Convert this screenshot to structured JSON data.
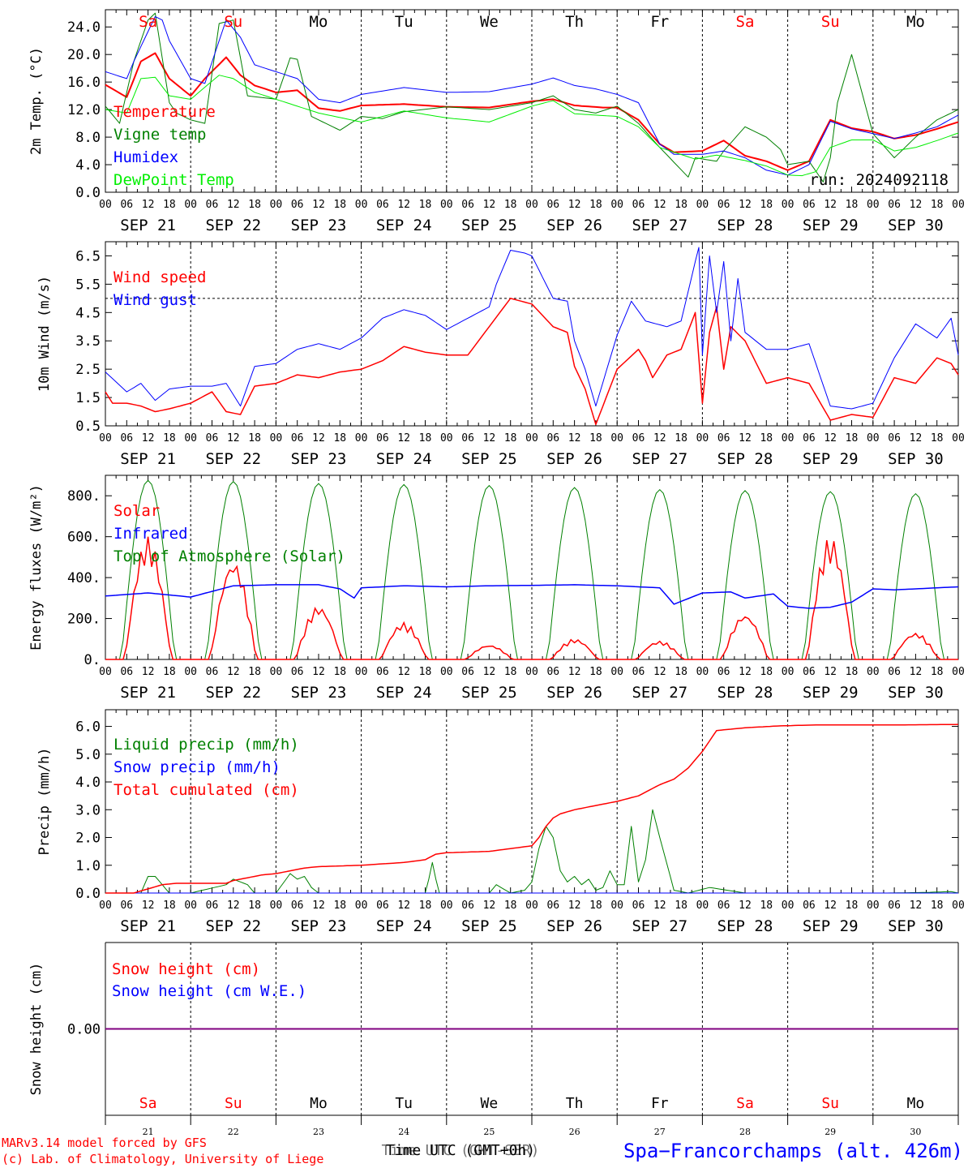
{
  "colors": {
    "red": "#ff0000",
    "green": "#008000",
    "blue": "#0000ff",
    "lime": "#00ee00",
    "purple": "#800080",
    "black": "#000000"
  },
  "days": [
    "Sa",
    "Su",
    "Mo",
    "Tu",
    "We",
    "Th",
    "Fr",
    "Sa",
    "Su",
    "Mo"
  ],
  "weekend_days": [
    "Sa",
    "Su"
  ],
  "dates": [
    "SEP 21",
    "SEP 22",
    "SEP 23",
    "SEP 24",
    "SEP 25",
    "SEP 26",
    "SEP 27",
    "SEP 28",
    "SEP 29",
    "SEP 30"
  ],
  "day_numbers": [
    "21",
    "22",
    "23",
    "24",
    "25",
    "26",
    "27",
    "28",
    "29",
    "30"
  ],
  "hour_ticks": [
    "00",
    "06",
    "12",
    "18"
  ],
  "hour_end": "00",
  "footer": {
    "model": "MARv3.14 model forced by GFS",
    "lab": "(c) Lab. of Climatology, University of Liege",
    "time_label": "Time UTC (GMT+0h)",
    "time_overlay": "Time UTC (GMT-SER)",
    "station": "Spa−Francorchamps (alt. 426m)"
  },
  "chart_data": [
    {
      "type": "line",
      "ylabel": "2m Temp. (°C)",
      "ylim": [
        0,
        26.5
      ],
      "yticks": [
        "0.0",
        "4.0",
        "8.0",
        "12.0",
        "16.0",
        "20.0",
        "24.0"
      ],
      "run_label": "run: 2024092118",
      "series": [
        {
          "name": "Temperature",
          "color": "#ff0000",
          "width": 2,
          "x": [
            0,
            6,
            10,
            14,
            18,
            24,
            28,
            34,
            38,
            42,
            48,
            54,
            60,
            66,
            72,
            84,
            96,
            108,
            120,
            126,
            132,
            140,
            144,
            150,
            156,
            160,
            168,
            174,
            180,
            186,
            192,
            198,
            204,
            210,
            216,
            222,
            228,
            234,
            240
          ],
          "y": [
            15.6,
            13.8,
            19,
            20.2,
            16.5,
            14,
            16.5,
            19.6,
            17,
            15.5,
            14.5,
            14.8,
            12.2,
            11.8,
            12.6,
            12.8,
            12.4,
            12.3,
            13.2,
            13.5,
            12.6,
            12.3,
            12.3,
            10.5,
            7,
            5.8,
            6,
            7.5,
            5.3,
            4.5,
            3.2,
            4.5,
            10.5,
            9.3,
            8.8,
            7.8,
            8.3,
            9.2,
            10.2
          ]
        },
        {
          "name": "Vigne temp",
          "color": "#008000",
          "width": 1,
          "x": [
            0,
            4,
            8,
            12,
            14,
            18,
            20,
            24,
            28,
            32,
            36,
            40,
            48,
            52,
            54,
            58,
            60,
            66,
            72,
            78,
            84,
            96,
            108,
            120,
            126,
            132,
            138,
            144,
            150,
            156,
            164,
            166,
            172,
            174,
            180,
            186,
            190,
            192,
            198,
            200,
            202,
            204,
            206,
            210,
            216,
            222,
            228,
            234,
            240
          ],
          "y": [
            12.5,
            10,
            19,
            25,
            26,
            13,
            11.5,
            10.5,
            10,
            24.5,
            25,
            14,
            13.5,
            19.5,
            19.3,
            11,
            10.5,
            9,
            11,
            10.7,
            11.7,
            12.4,
            12,
            13,
            14,
            12,
            11.5,
            12.5,
            10,
            6.5,
            2.2,
            5,
            4.5,
            6,
            9.5,
            8,
            6.2,
            4,
            4.5,
            3,
            1.5,
            5,
            13,
            20,
            8.5,
            5,
            8,
            10.5,
            12
          ]
        },
        {
          "name": "Humidex",
          "color": "#0000ff",
          "width": 1,
          "x": [
            0,
            6,
            8,
            14,
            16,
            18,
            24,
            28,
            32,
            34,
            38,
            42,
            48,
            54,
            60,
            66,
            72,
            84,
            96,
            108,
            120,
            126,
            132,
            138,
            144,
            150,
            156,
            160,
            168,
            174,
            180,
            186,
            192,
            198,
            204,
            210,
            216,
            222,
            228,
            234,
            240
          ],
          "y": [
            17.5,
            16.5,
            19,
            25.5,
            25,
            22,
            16.5,
            15.8,
            22,
            25,
            22.5,
            18.5,
            17.5,
            16.5,
            13.5,
            13,
            14.2,
            15.2,
            14.5,
            14.6,
            15.7,
            16.6,
            15.5,
            15,
            14.2,
            13,
            7,
            5.5,
            5.5,
            6,
            5,
            3.2,
            2.5,
            4,
            10.3,
            9.2,
            8.5,
            7.8,
            8.6,
            9.5,
            11.2
          ]
        },
        {
          "name": "DewPoint Temp",
          "color": "#00ee00",
          "width": 1,
          "x": [
            0,
            6,
            10,
            14,
            18,
            24,
            32,
            36,
            42,
            48,
            60,
            72,
            84,
            96,
            108,
            120,
            126,
            132,
            144,
            150,
            156,
            166,
            172,
            180,
            186,
            192,
            196,
            200,
            204,
            210,
            216,
            222,
            228,
            234,
            240
          ],
          "y": [
            12,
            11.5,
            16.5,
            16.7,
            14,
            13.5,
            17,
            16.5,
            14.5,
            13.5,
            11.5,
            10.2,
            11.8,
            10.8,
            10.2,
            12.5,
            13.3,
            11.4,
            11,
            9.5,
            6.5,
            4.8,
            5.4,
            4.6,
            3.8,
            2.5,
            2.4,
            3,
            6.5,
            7.6,
            7.6,
            6,
            6.5,
            7.5,
            8.6
          ]
        }
      ]
    },
    {
      "type": "line",
      "ylabel": "10m Wind (m/s)",
      "ylim": [
        0.5,
        7
      ],
      "yticks": [
        "0.5",
        "1.5",
        "2.5",
        "3.5",
        "4.5",
        "5.5",
        "6.5"
      ],
      "reference_line": 5.0,
      "series": [
        {
          "name": "Wind speed",
          "color": "#ff0000",
          "width": 1.5,
          "x": [
            0,
            2,
            6,
            10,
            14,
            18,
            24,
            30,
            34,
            38,
            42,
            48,
            54,
            60,
            66,
            72,
            78,
            84,
            90,
            96,
            102,
            108,
            114,
            120,
            126,
            130,
            132,
            135,
            138,
            144,
            150,
            152,
            154,
            158,
            162,
            166,
            168,
            170,
            172,
            174,
            176,
            180,
            186,
            192,
            198,
            204,
            210,
            216,
            222,
            228,
            234,
            238,
            240
          ],
          "y": [
            1.7,
            1.3,
            1.3,
            1.2,
            1.0,
            1.1,
            1.3,
            1.7,
            1.0,
            0.9,
            1.9,
            2.0,
            2.3,
            2.2,
            2.4,
            2.5,
            2.8,
            3.3,
            3.1,
            3.0,
            3.0,
            4.0,
            5.0,
            4.8,
            4.0,
            3.8,
            2.6,
            1.8,
            0.55,
            2.5,
            3.2,
            2.8,
            2.2,
            3.0,
            3.2,
            4.5,
            1.3,
            3.8,
            4.7,
            2.5,
            4.0,
            3.5,
            2.0,
            2.2,
            2.0,
            0.7,
            0.9,
            0.8,
            2.2,
            2.0,
            2.9,
            2.7,
            2.3
          ]
        },
        {
          "name": "Wind gust",
          "color": "#0000ff",
          "width": 1,
          "x": [
            0,
            6,
            10,
            14,
            18,
            24,
            30,
            34,
            38,
            42,
            48,
            54,
            60,
            66,
            72,
            78,
            84,
            90,
            96,
            102,
            108,
            110,
            114,
            118,
            120,
            126,
            130,
            132,
            135,
            138,
            144,
            148,
            152,
            158,
            162,
            166,
            167,
            168,
            170,
            172,
            174,
            176,
            178,
            180,
            186,
            192,
            198,
            204,
            210,
            216,
            222,
            228,
            234,
            238,
            240
          ],
          "y": [
            2.4,
            1.7,
            2.0,
            1.4,
            1.8,
            1.9,
            1.9,
            2.0,
            1.2,
            2.6,
            2.7,
            3.2,
            3.4,
            3.2,
            3.6,
            4.3,
            4.6,
            4.4,
            3.9,
            4.3,
            4.7,
            5.5,
            6.7,
            6.6,
            6.5,
            5.0,
            4.9,
            3.5,
            2.5,
            1.2,
            3.7,
            4.9,
            4.2,
            4.0,
            4.2,
            6.3,
            6.8,
            3.0,
            6.5,
            4.5,
            6.3,
            3.5,
            5.7,
            3.8,
            3.2,
            3.2,
            3.4,
            1.2,
            1.1,
            1.3,
            2.9,
            4.1,
            3.6,
            4.3,
            3.0
          ]
        }
      ]
    },
    {
      "type": "line",
      "ylabel": "Energy fluxes (W/m²)",
      "ylim": [
        0,
        900
      ],
      "yticks": [
        "0.",
        "200.",
        "400.",
        "600.",
        "800."
      ],
      "series": [
        {
          "name": "Solar",
          "color": "#ff0000",
          "width": 1.5,
          "daily_peaks": [
            600,
            480,
            260,
            180,
            70,
            100,
            90,
            220,
            600,
            130
          ]
        },
        {
          "name": "Infrared",
          "color": "#0000ff",
          "width": 1.5,
          "x": [
            0,
            12,
            24,
            36,
            48,
            60,
            66,
            70,
            72,
            84,
            96,
            108,
            120,
            132,
            144,
            150,
            156,
            160,
            168,
            176,
            180,
            188,
            192,
            198,
            204,
            210,
            216,
            222,
            228,
            234,
            240
          ],
          "y": [
            310,
            325,
            305,
            360,
            365,
            365,
            345,
            300,
            350,
            360,
            355,
            360,
            362,
            365,
            360,
            355,
            350,
            270,
            325,
            330,
            300,
            320,
            260,
            250,
            255,
            280,
            345,
            340,
            345,
            350,
            355
          ]
        },
        {
          "name": "Top of Atmosphere (Solar)",
          "color": "#008000",
          "width": 1,
          "daily_peaks": [
            875,
            870,
            860,
            855,
            850,
            840,
            830,
            825,
            820,
            810
          ]
        }
      ]
    },
    {
      "type": "line",
      "ylabel": "Precip (mm/h)",
      "ylim": [
        0,
        6.6
      ],
      "yticks": [
        "0.0",
        "1.0",
        "2.0",
        "3.0",
        "4.0",
        "5.0",
        "6.0"
      ],
      "series": [
        {
          "name": "Liquid precip (mm/h)",
          "color": "#008000",
          "width": 1,
          "x": [
            0,
            10,
            12,
            14,
            16,
            18,
            24,
            34,
            36,
            40,
            42,
            48,
            52,
            54,
            56,
            58,
            60,
            72,
            84,
            90,
            91,
            92,
            93,
            94,
            100,
            108,
            110,
            114,
            118,
            120,
            122,
            124,
            126,
            128,
            130,
            132,
            134,
            136,
            138,
            140,
            142,
            144,
            146,
            148,
            150,
            152,
            154,
            156,
            160,
            164,
            170,
            180,
            192,
            200,
            210,
            220,
            230,
            238,
            240
          ],
          "y": [
            0,
            0,
            0.6,
            0.6,
            0.3,
            0,
            0,
            0.3,
            0.5,
            0.3,
            0,
            0,
            0.7,
            0.5,
            0.6,
            0.2,
            0,
            0,
            0,
            0,
            0.5,
            1.1,
            0.5,
            0,
            0,
            0,
            0.3,
            0,
            0.1,
            0.4,
            1.6,
            2.4,
            2.0,
            0.8,
            0.4,
            0.6,
            0.3,
            0.5,
            0.1,
            0.2,
            0.8,
            0.3,
            0.3,
            2.4,
            0.4,
            1.2,
            3.0,
            2.0,
            0.1,
            0,
            0.2,
            0,
            0,
            0,
            0,
            0,
            0.02,
            0.05,
            0
          ]
        },
        {
          "name": "Snow precip (mm/h)",
          "color": "#0000ff",
          "width": 1,
          "x": [
            0,
            240
          ],
          "y": [
            0,
            0
          ]
        },
        {
          "name": "Total cumulated (cm)",
          "color": "#ff0000",
          "width": 1.5,
          "x": [
            0,
            8,
            12,
            16,
            20,
            24,
            34,
            36,
            40,
            44,
            48,
            52,
            56,
            60,
            72,
            84,
            90,
            93,
            96,
            108,
            114,
            120,
            122,
            124,
            126,
            128,
            132,
            144,
            150,
            156,
            160,
            164,
            168,
            172,
            176,
            180,
            190,
            200,
            210,
            220,
            240
          ],
          "y": [
            0,
            0,
            0.15,
            0.3,
            0.35,
            0.35,
            0.35,
            0.45,
            0.55,
            0.65,
            0.7,
            0.8,
            0.9,
            0.95,
            1.0,
            1.1,
            1.2,
            1.4,
            1.45,
            1.5,
            1.6,
            1.7,
            2.0,
            2.4,
            2.7,
            2.85,
            3.0,
            3.3,
            3.5,
            3.9,
            4.1,
            4.5,
            5.1,
            5.85,
            5.9,
            5.95,
            6.02,
            6.05,
            6.05,
            6.05,
            6.07
          ]
        }
      ]
    },
    {
      "type": "line",
      "ylabel": "Snow height (cm)",
      "ylim": [
        -1,
        1
      ],
      "yticks": [
        "0.00"
      ],
      "series": [
        {
          "name": "Snow height (cm)",
          "color": "#ff0000",
          "x": [
            0,
            240
          ],
          "y": [
            0,
            0
          ]
        },
        {
          "name": "Snow height (cm W.E.)",
          "color": "#0000ff",
          "x": [
            0,
            240
          ],
          "y": [
            0,
            0
          ]
        }
      ]
    }
  ]
}
